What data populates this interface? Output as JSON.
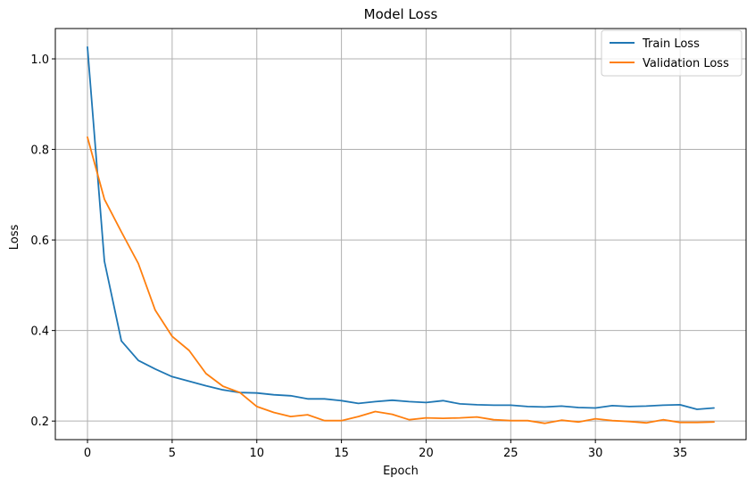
{
  "chart_data": {
    "type": "line",
    "title": "Model Loss",
    "xlabel": "Epoch",
    "ylabel": "Loss",
    "xlim": [
      -1.9,
      38.9
    ],
    "ylim": [
      0.159,
      1.067
    ],
    "xticks": [
      0,
      5,
      10,
      15,
      20,
      25,
      30,
      35
    ],
    "yticks": [
      0.2,
      0.4,
      0.6,
      0.8,
      1.0
    ],
    "ytick_labels": [
      "0.2",
      "0.4",
      "0.6",
      "0.8",
      "1.0"
    ],
    "grid": true,
    "legend": "top-right",
    "x": [
      0,
      1,
      2,
      3,
      4,
      5,
      6,
      7,
      8,
      9,
      10,
      11,
      12,
      13,
      14,
      15,
      16,
      17,
      18,
      19,
      20,
      21,
      22,
      23,
      24,
      25,
      26,
      27,
      28,
      29,
      30,
      31,
      32,
      33,
      34,
      35,
      36,
      37
    ],
    "series": [
      {
        "name": "Train Loss",
        "color": "#1f77b4",
        "values": [
          1.026,
          0.553,
          0.377,
          0.334,
          0.315,
          0.298,
          0.288,
          0.278,
          0.269,
          0.263,
          0.262,
          0.258,
          0.256,
          0.249,
          0.249,
          0.245,
          0.239,
          0.243,
          0.246,
          0.243,
          0.241,
          0.245,
          0.238,
          0.236,
          0.235,
          0.235,
          0.232,
          0.231,
          0.233,
          0.23,
          0.229,
          0.234,
          0.232,
          0.233,
          0.235,
          0.236,
          0.226,
          0.229
        ]
      },
      {
        "name": "Validation Loss",
        "color": "#ff7f0e",
        "values": [
          0.827,
          0.69,
          0.618,
          0.548,
          0.445,
          0.387,
          0.356,
          0.305,
          0.277,
          0.263,
          0.232,
          0.219,
          0.21,
          0.214,
          0.201,
          0.201,
          0.21,
          0.221,
          0.215,
          0.203,
          0.207,
          0.206,
          0.207,
          0.209,
          0.203,
          0.201,
          0.201,
          0.195,
          0.202,
          0.198,
          0.205,
          0.201,
          0.199,
          0.196,
          0.203,
          0.197,
          0.197,
          0.198
        ]
      }
    ]
  }
}
